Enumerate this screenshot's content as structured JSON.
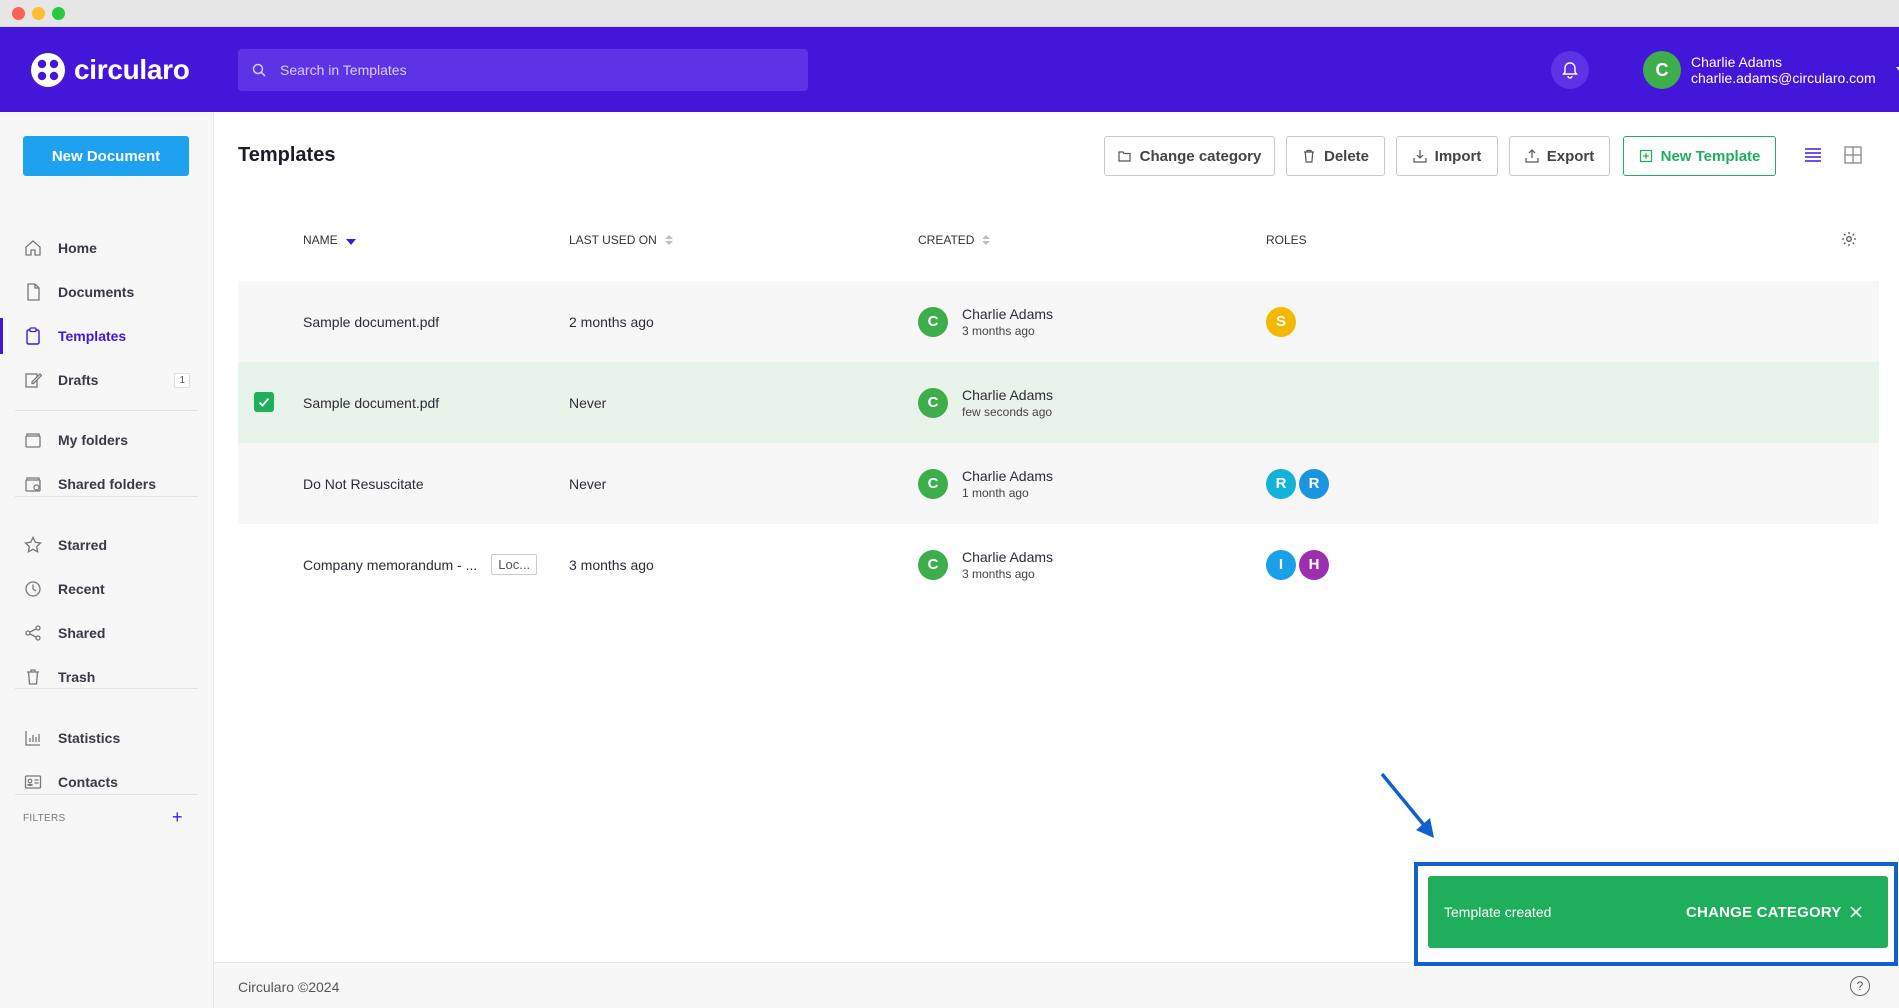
{
  "app": {
    "name": "circularo"
  },
  "search": {
    "placeholder": "Search in Templates"
  },
  "user": {
    "initial": "C",
    "name": "Charlie Adams",
    "email": "charlie.adams@circularo.com"
  },
  "sidebar": {
    "new_document": "New Document",
    "items": [
      {
        "label": "Home",
        "icon": "home-icon"
      },
      {
        "label": "Documents",
        "icon": "document-icon"
      },
      {
        "label": "Templates",
        "icon": "clipboard-icon",
        "active": true
      },
      {
        "label": "Drafts",
        "icon": "pencil-icon",
        "badge": "1"
      },
      {
        "label": "My folders",
        "icon": "folder-icon"
      },
      {
        "label": "Shared folders",
        "icon": "shared-folder-icon"
      },
      {
        "label": "Starred",
        "icon": "star-icon"
      },
      {
        "label": "Recent",
        "icon": "clock-icon"
      },
      {
        "label": "Shared",
        "icon": "share-icon"
      },
      {
        "label": "Trash",
        "icon": "trash-icon"
      },
      {
        "label": "Statistics",
        "icon": "chart-icon"
      },
      {
        "label": "Contacts",
        "icon": "contacts-icon"
      }
    ],
    "filters_label": "FILTERS"
  },
  "page": {
    "title": "Templates"
  },
  "toolbar": {
    "change_category": "Change category",
    "delete": "Delete",
    "import": "Import",
    "export": "Export",
    "new_template": "New Template"
  },
  "table": {
    "columns": {
      "name": "NAME",
      "last_used": "LAST USED ON",
      "created": "CREATED",
      "roles": "ROLES"
    },
    "rows": [
      {
        "name": "Sample document.pdf",
        "last_used": "2 months ago",
        "creator": "Charlie Adams",
        "creator_initial": "C",
        "created": "3 months ago",
        "roles": [
          {
            "letter": "S",
            "color": "#f5b800"
          }
        ]
      },
      {
        "name": "Sample document.pdf",
        "last_used": "Never",
        "creator": "Charlie Adams",
        "creator_initial": "C",
        "created": "few seconds ago",
        "roles": [],
        "selected": true
      },
      {
        "name": "Do Not Resuscitate",
        "last_used": "Never",
        "creator": "Charlie Adams",
        "creator_initial": "C",
        "created": "1 month ago",
        "roles": [
          {
            "letter": "R",
            "color": "#12b3d6"
          },
          {
            "letter": "R",
            "color": "#1a95e0"
          }
        ]
      },
      {
        "name": "Company memorandum - ...",
        "tag": "Loc...",
        "last_used": "3 months ago",
        "creator": "Charlie Adams",
        "creator_initial": "C",
        "created": "3 months ago",
        "roles": [
          {
            "letter": "I",
            "color": "#1aa0e8"
          },
          {
            "letter": "H",
            "color": "#9b2fae"
          }
        ]
      }
    ]
  },
  "footer": {
    "text": "Circularo ©2024",
    "help": "?"
  },
  "toast": {
    "message": "Template created",
    "action": "CHANGE CATEGORY"
  },
  "colors": {
    "brand": "#4416da",
    "accent": "#1ea2f0",
    "success": "#1fae5b",
    "avatar": "#3dae4b"
  }
}
